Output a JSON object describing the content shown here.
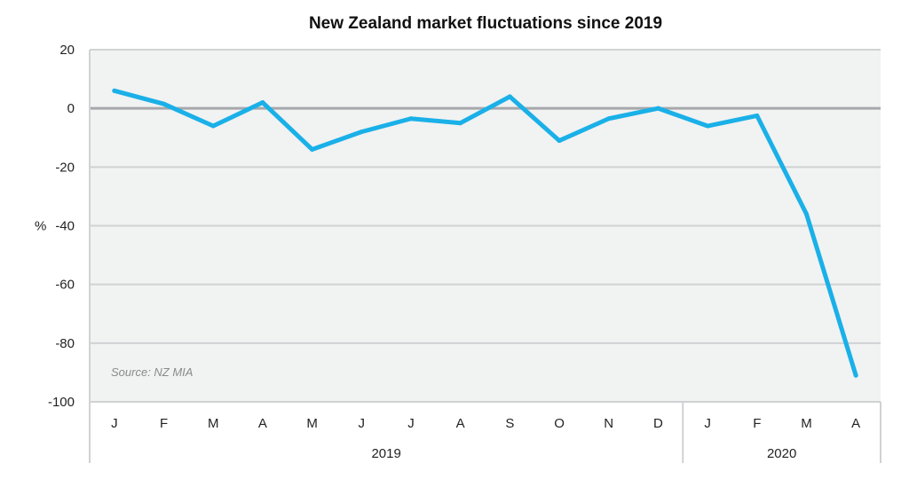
{
  "chart_data": {
    "type": "line",
    "title": "New Zealand market fluctuations since 2019",
    "ylabel": "%",
    "ylim": [
      -100,
      20
    ],
    "yticks": [
      20,
      0,
      -20,
      -40,
      -60,
      -80,
      -100
    ],
    "categories": [
      "J",
      "F",
      "M",
      "A",
      "M",
      "J",
      "J",
      "A",
      "S",
      "O",
      "N",
      "D",
      "J",
      "F",
      "M",
      "A"
    ],
    "groups": [
      {
        "label": "2019",
        "count": 12
      },
      {
        "label": "2020",
        "count": 4
      }
    ],
    "series": [
      {
        "values": [
          6,
          1.5,
          -6,
          2,
          -14,
          -8,
          -3.5,
          -5,
          4,
          -11,
          -3.5,
          0,
          -6,
          -2.5,
          -36,
          -91
        ]
      }
    ],
    "annotation": "Source: NZ MIA",
    "grid": true,
    "colors": {
      "line": "#1ab0e8",
      "plot_bg": "#f1f2f2",
      "grid": "#d0d2d3",
      "zero_line": "#a6a8ab"
    }
  }
}
